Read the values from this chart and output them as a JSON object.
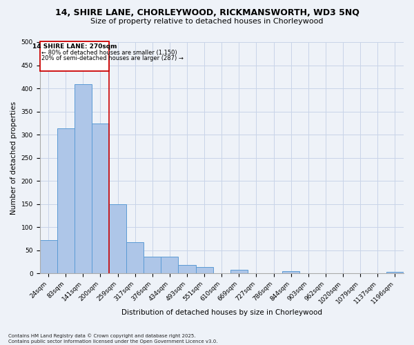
{
  "title": "14, SHIRE LANE, CHORLEYWOOD, RICKMANSWORTH, WD3 5NQ",
  "subtitle": "Size of property relative to detached houses in Chorleywood",
  "xlabel": "Distribution of detached houses by size in Chorleywood",
  "ylabel": "Number of detached properties",
  "categories": [
    "24sqm",
    "83sqm",
    "141sqm",
    "200sqm",
    "259sqm",
    "317sqm",
    "376sqm",
    "434sqm",
    "493sqm",
    "551sqm",
    "610sqm",
    "669sqm",
    "727sqm",
    "786sqm",
    "844sqm",
    "903sqm",
    "962sqm",
    "1020sqm",
    "1079sqm",
    "1137sqm",
    "1196sqm"
  ],
  "values": [
    72,
    314,
    409,
    324,
    150,
    68,
    36,
    36,
    18,
    13,
    0,
    8,
    0,
    0,
    4,
    0,
    0,
    0,
    0,
    0,
    3
  ],
  "bar_color": "#aec6e8",
  "bar_edge_color": "#5b9bd5",
  "annotation_text_line1": "14 SHIRE LANE: 270sqm",
  "annotation_text_line2": "← 80% of detached houses are smaller (1,150)",
  "annotation_text_line3": "20% of semi-detached houses are larger (287) →",
  "vline_color": "#cc0000",
  "box_edge_color": "#cc0000",
  "footnote1": "Contains HM Land Registry data © Crown copyright and database right 2025.",
  "footnote2": "Contains public sector information licensed under the Open Government Licence v3.0.",
  "ylim": [
    0,
    500
  ],
  "grid_color": "#c8d4e8",
  "bg_color": "#eef2f8",
  "title_fontsize": 9,
  "subtitle_fontsize": 8,
  "ylabel_fontsize": 7.5,
  "xlabel_fontsize": 7.5,
  "tick_fontsize": 6.5,
  "annot_fontsize1": 6.5,
  "annot_fontsize2": 6.0
}
